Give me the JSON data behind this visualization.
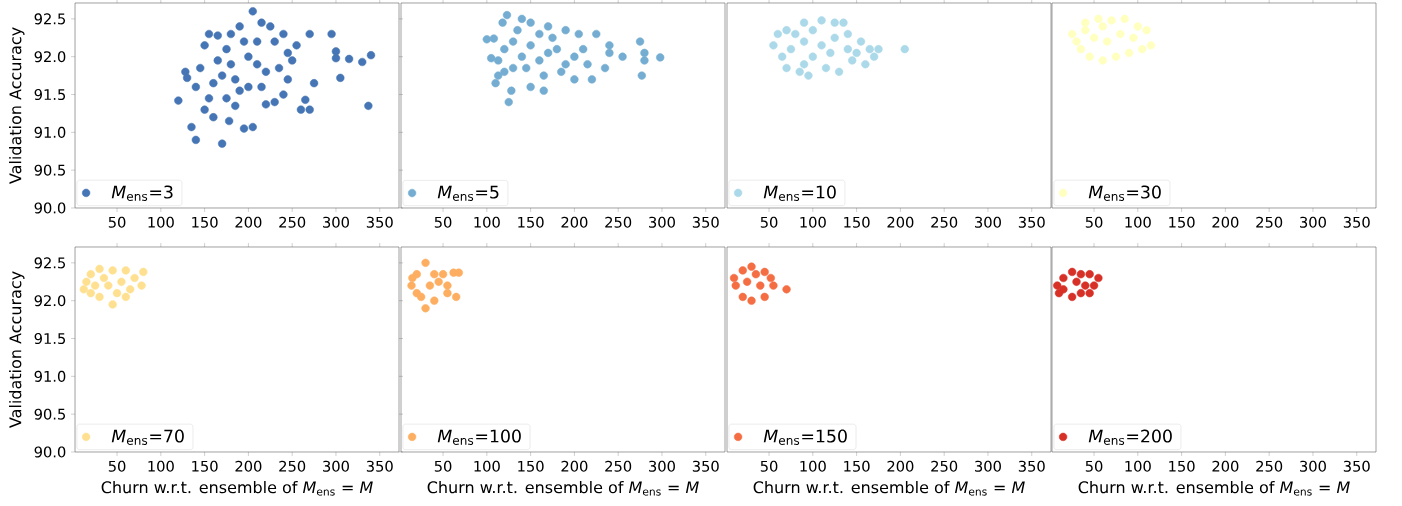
{
  "chart_data": [
    {
      "type": "scatter",
      "ylabel": "Validation Accuracy",
      "xlim": [
        2,
        372
      ],
      "ylim": [
        90.0,
        92.71
      ],
      "xticks": [
        50,
        100,
        150,
        200,
        250,
        300,
        350
      ],
      "yticks": [
        {
          "value": 90,
          "label": "90.0"
        },
        90.5,
        {
          "value": 91,
          "label": "91.0"
        },
        91.5,
        {
          "value": 92,
          "label": "92.0"
        },
        92.5
      ],
      "legend": "bottom left",
      "marker": "circle",
      "series": [
        {
          "name": "*M*$_{ens}$=3",
          "color": "#4575b4",
          "x": [
            205,
            120,
            140,
            170,
            135,
            178,
            195,
            205,
            337,
            340,
            330,
            315,
            300,
            305,
            295,
            270,
            255,
            300,
            275,
            265,
            240,
            230,
            270,
            260,
            220,
            185,
            190,
            140,
            128,
            130,
            145,
            150,
            155,
            165,
            190,
            215,
            225,
            240,
            230,
            245,
            250,
            235,
            220,
            210,
            200,
            180,
            170,
            160,
            175,
            195,
            165,
            185,
            200,
            180,
            210,
            155,
            175,
            215,
            245,
            150,
            160
          ],
          "values": [
            92.6,
            91.42,
            90.9,
            90.85,
            91.07,
            91.15,
            91.05,
            91.07,
            91.35,
            92.02,
            91.93,
            91.97,
            92.07,
            91.72,
            92.3,
            92.3,
            92.15,
            91.98,
            91.65,
            91.43,
            91.5,
            91.4,
            91.3,
            91.3,
            91.37,
            91.35,
            91.55,
            91.6,
            91.8,
            91.72,
            91.85,
            92.15,
            92.3,
            92.28,
            92.4,
            92.45,
            92.4,
            92.3,
            92.2,
            92.05,
            91.95,
            91.85,
            91.8,
            91.9,
            92.0,
            91.9,
            91.75,
            91.65,
            92.1,
            92.2,
            91.95,
            91.7,
            91.6,
            92.3,
            92.2,
            91.45,
            91.45,
            91.6,
            91.7,
            91.3,
            91.2
          ]
        }
      ]
    },
    {
      "type": "scatter",
      "xlim": [
        2,
        372
      ],
      "ylim": [
        90.0,
        92.71
      ],
      "xticks": [
        50,
        100,
        150,
        200,
        250,
        300,
        350
      ],
      "tick_labels": "x",
      "legend": "bottom left",
      "marker": "circle",
      "series": [
        {
          "name": "*M*$_{ens}$=5",
          "color": "#74add1",
          "x": [
            100,
            108,
            118,
            123,
            140,
            150,
            170,
            190,
            205,
            225,
            240,
            240,
            255,
            275,
            280,
            280,
            298,
            277,
            235,
            220,
            200,
            215,
            185,
            165,
            165,
            150,
            125,
            128,
            113,
            110,
            113,
            105,
            120,
            130,
            140,
            150,
            160,
            170,
            180,
            200,
            190,
            145,
            130,
            175,
            160,
            135,
            210,
            120
          ],
          "values": [
            92.23,
            92.24,
            92.45,
            92.55,
            92.5,
            92.45,
            92.4,
            92.35,
            92.3,
            92.3,
            92.15,
            92.05,
            92.0,
            92.2,
            92.05,
            91.95,
            91.99,
            91.75,
            91.85,
            91.7,
            91.7,
            91.9,
            91.8,
            91.75,
            91.55,
            91.6,
            91.4,
            91.55,
            91.75,
            91.65,
            91.95,
            91.98,
            92.1,
            92.2,
            92.0,
            92.15,
            91.95,
            92.05,
            92.1,
            92.0,
            91.9,
            91.85,
            91.85,
            92.25,
            92.3,
            92.35,
            92.1,
            91.8
          ]
        }
      ]
    },
    {
      "type": "scatter",
      "xlim": [
        2,
        372
      ],
      "ylim": [
        90.0,
        92.71
      ],
      "xticks": [
        50,
        100,
        150,
        200,
        250,
        300,
        350
      ],
      "tick_labels": "x",
      "legend": "bottom left",
      "marker": "circle",
      "series": [
        {
          "name": "*M*$_{ens}$=10",
          "color": "#abd9e9",
          "x": [
            55,
            60,
            70,
            90,
            110,
            125,
            135,
            140,
            155,
            165,
            170,
            175,
            205,
            160,
            145,
            130,
            115,
            95,
            85,
            70,
            65,
            75,
            90,
            100,
            110,
            120,
            80,
            100,
            140,
            125,
            90,
            150
          ],
          "values": [
            92.15,
            92.3,
            92.35,
            92.45,
            92.48,
            92.45,
            92.45,
            92.3,
            92.2,
            92.1,
            92.0,
            92.1,
            92.1,
            91.9,
            91.95,
            91.8,
            91.85,
            91.75,
            91.8,
            91.85,
            92.0,
            92.1,
            92.2,
            92.0,
            92.15,
            92.05,
            92.3,
            92.35,
            92.1,
            92.25,
            91.9,
            92.05
          ]
        }
      ]
    },
    {
      "type": "scatter",
      "xlim": [
        2,
        372
      ],
      "ylim": [
        90.0,
        92.71
      ],
      "xticks": [
        50,
        100,
        150,
        200,
        250,
        300,
        350
      ],
      "tick_labels": "x",
      "legend": "bottom left",
      "marker": "circle",
      "series": [
        {
          "name": "*M*$_{ens}$=30",
          "color": "#ffffbf",
          "x": [
            25,
            30,
            40,
            55,
            70,
            85,
            100,
            110,
            115,
            105,
            90,
            75,
            60,
            45,
            35,
            50,
            65,
            80,
            95,
            60,
            40
          ],
          "values": [
            92.3,
            92.2,
            92.45,
            92.5,
            92.48,
            92.5,
            92.4,
            92.35,
            92.15,
            92.1,
            92.05,
            92.0,
            91.95,
            92.0,
            92.1,
            92.25,
            92.2,
            92.3,
            92.25,
            92.4,
            92.35
          ]
        }
      ]
    },
    {
      "type": "scatter",
      "xlabel": "Churn w.r.t. ensemble of *M*$_{ens}$ = *M*",
      "ylabel": "Validation Accuracy",
      "xlim": [
        2,
        372
      ],
      "ylim": [
        90.0,
        92.71
      ],
      "xticks": [
        50,
        100,
        150,
        200,
        250,
        300,
        350
      ],
      "yticks": [
        {
          "value": 90,
          "label": "90.0"
        },
        90.5,
        {
          "value": 91,
          "label": "91.0"
        },
        91.5,
        {
          "value": 92,
          "label": "92.0"
        },
        92.5
      ],
      "legend": "bottom left",
      "marker": "circle",
      "series": [
        {
          "name": "*M*$_{ens}$=70",
          "color": "#fee090",
          "x": [
            12,
            15,
            20,
            30,
            45,
            60,
            70,
            80,
            78,
            65,
            50,
            45,
            30,
            20,
            40,
            55,
            35,
            25,
            60
          ],
          "values": [
            92.15,
            92.25,
            92.35,
            92.42,
            92.4,
            92.4,
            92.3,
            92.38,
            92.2,
            92.15,
            92.1,
            91.95,
            92.05,
            92.1,
            92.2,
            92.25,
            92.3,
            92.2,
            92.05
          ]
        }
      ]
    },
    {
      "type": "scatter",
      "xlabel": "Churn w.r.t. ensemble of *M*$_{ens}$ = *M*",
      "xlim": [
        2,
        372
      ],
      "ylim": [
        90.0,
        92.71
      ],
      "xticks": [
        50,
        100,
        150,
        200,
        250,
        300,
        350
      ],
      "tick_labels": "x",
      "legend": "bottom left",
      "marker": "circle",
      "series": [
        {
          "name": "*M*$_{ens}$=100",
          "color": "#fdae61",
          "x": [
            15,
            14,
            20,
            30,
            40,
            50,
            62,
            68,
            65,
            55,
            40,
            30,
            25,
            35,
            45,
            55,
            20
          ],
          "values": [
            92.3,
            92.2,
            92.1,
            92.5,
            92.35,
            92.35,
            92.37,
            92.37,
            92.05,
            92.1,
            92.0,
            91.9,
            92.05,
            92.2,
            92.25,
            92.2,
            92.35
          ]
        }
      ]
    },
    {
      "type": "scatter",
      "xlabel": "Churn w.r.t. ensemble of *M*$_{ens}$ = *M*",
      "xlim": [
        2,
        372
      ],
      "ylim": [
        90.0,
        92.71
      ],
      "xticks": [
        50,
        100,
        150,
        200,
        250,
        300,
        350
      ],
      "tick_labels": "x",
      "legend": "bottom left",
      "marker": "circle",
      "series": [
        {
          "name": "*M*$_{ens}$=150",
          "color": "#f46d43",
          "x": [
            10,
            12,
            20,
            30,
            45,
            52,
            55,
            70,
            45,
            30,
            20,
            25,
            40,
            35
          ],
          "values": [
            92.3,
            92.2,
            92.4,
            92.45,
            92.38,
            92.3,
            92.2,
            92.15,
            92.05,
            92.0,
            92.05,
            92.25,
            92.2,
            92.35
          ]
        }
      ]
    },
    {
      "type": "scatter",
      "xlabel": "Churn w.r.t. ensemble of *M*$_{ens}$ = *M*",
      "xlim": [
        2,
        372
      ],
      "ylim": [
        90.0,
        92.71
      ],
      "xticks": [
        50,
        100,
        150,
        200,
        250,
        300,
        350
      ],
      "tick_labels": "x",
      "legend": "bottom left",
      "marker": "circle",
      "series": [
        {
          "name": "*M*$_{ens}$=200",
          "color": "#d73027",
          "x": [
            8,
            10,
            15,
            25,
            35,
            45,
            55,
            50,
            45,
            35,
            25,
            15,
            30,
            40
          ],
          "values": [
            92.2,
            92.1,
            92.3,
            92.38,
            92.35,
            92.35,
            92.3,
            92.2,
            92.1,
            92.1,
            92.05,
            92.15,
            92.25,
            92.2
          ]
        }
      ]
    }
  ]
}
